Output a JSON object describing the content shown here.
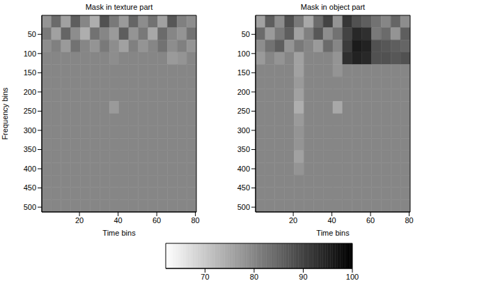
{
  "chart_data": [
    {
      "type": "heatmap",
      "title": "Mask in texture part",
      "x_label": "Time bins",
      "y_label": "Frequency bins",
      "xlim": [
        0.5,
        80.5
      ],
      "ylim": [
        0.5,
        512.5
      ],
      "xticks": [
        20,
        40,
        60,
        80
      ],
      "yticks": [
        50,
        100,
        150,
        200,
        250,
        300,
        350,
        400,
        450,
        500
      ],
      "x_edges": [
        0.5,
        5.5,
        10.5,
        15.5,
        20.5,
        25.5,
        30.5,
        35.5,
        40.5,
        45.5,
        50.5,
        55.5,
        60.5,
        65.5,
        70.5,
        75.5,
        80.5
      ],
      "y_edges": [
        0.5,
        32.5,
        64.5,
        96.5,
        128.5,
        160.5,
        192.5,
        224.5,
        256.5,
        288.5,
        320.5,
        352.5,
        384.5,
        416.5,
        448.5,
        480.5,
        512.5
      ],
      "cells": [
        [
          78,
          84,
          76,
          86,
          80,
          74,
          88,
          82,
          77,
          85,
          79,
          83,
          76,
          87,
          81,
          79
        ],
        [
          82,
          76,
          85,
          79,
          74,
          83,
          80,
          77,
          86,
          78,
          82,
          75,
          84,
          80,
          78,
          83
        ],
        [
          79,
          81,
          77,
          83,
          80,
          78,
          82,
          79,
          76,
          81,
          78,
          80,
          83,
          79,
          81,
          78
        ],
        [
          80,
          80,
          80,
          80,
          80,
          80,
          80,
          79,
          80,
          80,
          80,
          80,
          80,
          77,
          78,
          80
        ],
        [
          80,
          80,
          80,
          80,
          80,
          80,
          80,
          80,
          80,
          80,
          80,
          80,
          80,
          80,
          80,
          80
        ],
        [
          80,
          80,
          80,
          80,
          80,
          80,
          80,
          80,
          80,
          80,
          80,
          80,
          80,
          80,
          80,
          80
        ],
        [
          80,
          80,
          80,
          80,
          80,
          80,
          80,
          80,
          80,
          80,
          80,
          80,
          80,
          80,
          80,
          80
        ],
        [
          80,
          80,
          80,
          80,
          80,
          80,
          80,
          77,
          80,
          80,
          80,
          80,
          80,
          80,
          80,
          80
        ],
        [
          80,
          80,
          80,
          80,
          80,
          80,
          80,
          80,
          80,
          80,
          80,
          80,
          80,
          80,
          80,
          80
        ],
        [
          80,
          80,
          80,
          80,
          80,
          80,
          80,
          80,
          80,
          80,
          80,
          80,
          80,
          80,
          80,
          80
        ],
        [
          80,
          80,
          80,
          80,
          80,
          80,
          80,
          80,
          80,
          80,
          80,
          80,
          80,
          80,
          80,
          80
        ],
        [
          80,
          80,
          80,
          80,
          80,
          80,
          80,
          80,
          80,
          80,
          80,
          80,
          80,
          80,
          80,
          80
        ],
        [
          80,
          80,
          80,
          80,
          80,
          80,
          80,
          80,
          80,
          80,
          80,
          80,
          80,
          80,
          80,
          80
        ],
        [
          80,
          80,
          80,
          80,
          80,
          80,
          80,
          80,
          80,
          80,
          80,
          80,
          80,
          80,
          80,
          80
        ],
        [
          80,
          80,
          80,
          80,
          80,
          80,
          80,
          80,
          80,
          80,
          80,
          80,
          80,
          80,
          80,
          80
        ],
        [
          80,
          80,
          80,
          80,
          80,
          80,
          80,
          80,
          80,
          80,
          80,
          80,
          80,
          80,
          80,
          80
        ]
      ]
    },
    {
      "type": "heatmap",
      "title": "Mask in object part",
      "x_label": "Time bins",
      "xlim": [
        0.5,
        80.5
      ],
      "ylim": [
        0.5,
        512.5
      ],
      "xticks": [
        20,
        40,
        60,
        80
      ],
      "yticks": [
        50,
        100,
        150,
        200,
        250,
        300,
        350,
        400,
        450,
        500
      ],
      "x_edges": [
        0.5,
        5.5,
        10.5,
        15.5,
        20.5,
        25.5,
        30.5,
        35.5,
        40.5,
        45.5,
        50.5,
        55.5,
        60.5,
        65.5,
        70.5,
        75.5,
        80.5
      ],
      "y_edges": [
        0.5,
        32.5,
        64.5,
        96.5,
        128.5,
        160.5,
        192.5,
        224.5,
        256.5,
        288.5,
        320.5,
        352.5,
        384.5,
        416.5,
        448.5,
        480.5,
        512.5
      ],
      "cells": [
        [
          76,
          86,
          79,
          88,
          82,
          75,
          84,
          90,
          78,
          92,
          88,
          86,
          83,
          80,
          85,
          79
        ],
        [
          84,
          77,
          82,
          86,
          76,
          81,
          87,
          79,
          83,
          90,
          94,
          93,
          82,
          84,
          78,
          86
        ],
        [
          79,
          83,
          86,
          78,
          82,
          80,
          77,
          84,
          80,
          91,
          96,
          95,
          88,
          87,
          86,
          85
        ],
        [
          77,
          80,
          78,
          80,
          76,
          80,
          80,
          80,
          78,
          93,
          95,
          94,
          88,
          88,
          87,
          88
        ],
        [
          80,
          80,
          80,
          80,
          76,
          80,
          80,
          80,
          78,
          80,
          80,
          80,
          80,
          80,
          80,
          80
        ],
        [
          80,
          80,
          80,
          80,
          77,
          80,
          80,
          80,
          80,
          80,
          80,
          80,
          80,
          80,
          80,
          80
        ],
        [
          80,
          80,
          80,
          80,
          76,
          80,
          80,
          80,
          80,
          80,
          80,
          80,
          80,
          80,
          80,
          80
        ],
        [
          80,
          80,
          80,
          80,
          74,
          80,
          80,
          80,
          75,
          80,
          80,
          80,
          80,
          80,
          80,
          80
        ],
        [
          80,
          80,
          80,
          80,
          77,
          80,
          80,
          80,
          80,
          80,
          80,
          80,
          80,
          80,
          80,
          80
        ],
        [
          80,
          80,
          80,
          80,
          78,
          80,
          80,
          80,
          80,
          80,
          80,
          80,
          80,
          80,
          80,
          80
        ],
        [
          80,
          80,
          80,
          80,
          78,
          80,
          80,
          80,
          80,
          80,
          80,
          80,
          80,
          80,
          80,
          80
        ],
        [
          80,
          80,
          80,
          80,
          76,
          80,
          80,
          80,
          80,
          80,
          80,
          80,
          80,
          80,
          80,
          80
        ],
        [
          80,
          80,
          80,
          80,
          78,
          80,
          80,
          80,
          80,
          80,
          80,
          80,
          80,
          80,
          80,
          80
        ],
        [
          80,
          80,
          80,
          80,
          80,
          80,
          80,
          80,
          80,
          80,
          80,
          80,
          80,
          80,
          80,
          80
        ],
        [
          80,
          80,
          80,
          80,
          80,
          80,
          80,
          80,
          80,
          80,
          80,
          80,
          80,
          80,
          80,
          80
        ],
        [
          80,
          80,
          80,
          80,
          80,
          80,
          80,
          80,
          80,
          80,
          80,
          80,
          80,
          80,
          80,
          80
        ]
      ]
    }
  ],
  "colorbar": {
    "range": [
      62,
      100
    ],
    "ticks": [
      70,
      80,
      90,
      100
    ]
  }
}
